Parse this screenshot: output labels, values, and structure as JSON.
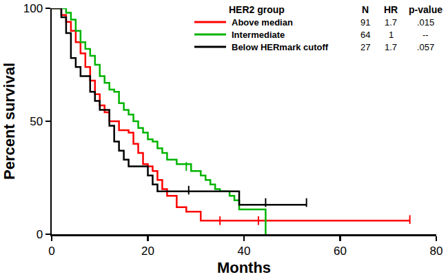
{
  "chart_data": {
    "type": "line",
    "x_label": "Months",
    "y_label": "Percent survival",
    "xlim": [
      0,
      80
    ],
    "xticks": [
      0,
      20,
      40,
      60,
      80
    ],
    "ylim": [
      0,
      100
    ],
    "yticks": [
      0,
      50,
      100
    ],
    "grid": false,
    "line_style": "step",
    "legend_table": {
      "header": [
        "HER2 group",
        "N",
        "HR",
        "p-value"
      ],
      "rows": [
        [
          "Above median",
          91,
          1.7,
          ".015"
        ],
        [
          "Intermediate",
          64,
          1,
          "--"
        ],
        [
          "Below HERmark cutoff",
          27,
          1.7,
          ".057"
        ]
      ]
    },
    "series": [
      {
        "name": "Above median",
        "color": "#ff0000",
        "x": [
          0,
          2,
          3,
          4,
          5,
          6,
          7,
          8,
          9,
          10,
          11,
          12,
          14,
          16,
          17,
          18,
          19,
          20,
          21,
          22,
          23,
          24,
          26,
          28,
          31,
          74.5
        ],
        "values": [
          100,
          97,
          94,
          90,
          85,
          80,
          74,
          68,
          62,
          57,
          54,
          50,
          46,
          45,
          40,
          36,
          31,
          30,
          28,
          24,
          20,
          17,
          12,
          10,
          6,
          6
        ],
        "censored": {
          "x": [
            35,
            43,
            74.5
          ],
          "values": [
            6,
            6,
            6.5
          ]
        }
      },
      {
        "name": "Intermediate",
        "color": "#00b400",
        "x": [
          0,
          3,
          4,
          5,
          6,
          7,
          8,
          9,
          10,
          11,
          12,
          13,
          14,
          15,
          16,
          17,
          18,
          19,
          20,
          21,
          22,
          23,
          24,
          26,
          29,
          31,
          32,
          33,
          34,
          35,
          37,
          38,
          39,
          44.5
        ],
        "values": [
          100,
          98,
          95,
          90,
          85,
          82,
          79,
          75,
          70,
          67,
          64,
          63,
          58,
          55,
          53,
          50,
          47,
          45,
          42,
          41,
          38,
          36,
          33,
          31,
          28,
          26,
          24,
          22,
          20,
          19,
          17,
          15,
          11,
          0
        ],
        "censored": {
          "x": [
            28
          ],
          "values": [
            30
          ]
        }
      },
      {
        "name": "Below HERmark cutoff",
        "color": "#000000",
        "x": [
          0,
          2,
          3,
          4,
          5,
          6,
          8,
          9,
          10,
          12,
          13,
          14,
          15,
          16,
          20,
          21,
          22,
          39,
          53
        ],
        "values": [
          100,
          96,
          89,
          78,
          74,
          70,
          63,
          59,
          55,
          48,
          41,
          37,
          33,
          30,
          26,
          22,
          19,
          13,
          13
        ],
        "censored": {
          "x": [
            28.5,
            44.5,
            53
          ],
          "values": [
            19.5,
            14,
            14
          ]
        }
      }
    ]
  }
}
